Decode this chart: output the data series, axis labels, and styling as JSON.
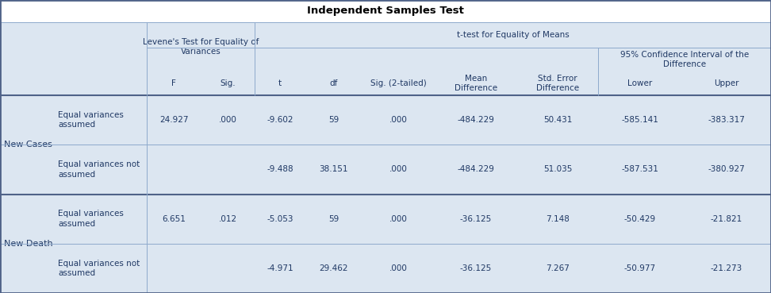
{
  "title": "Independent Samples Test",
  "header_levene": "Levene's Test for Equality of\nVariances",
  "header_ttest": "t-test for Equality of Means",
  "header_ci": "95% Confidence Interval of the\nDifference",
  "col_headers_row3": [
    "F",
    "Sig.",
    "t",
    "df",
    "Sig. (2-tailed)",
    "Mean\nDifference",
    "Std. Error\nDifference",
    "Lower",
    "Upper"
  ],
  "row_groups": [
    {
      "group_label": "New Cases",
      "rows": [
        {
          "sub_label": "Equal variances\nassumed",
          "values": [
            "24.927",
            ".000",
            "-9.602",
            "59",
            ".000",
            "-484.229",
            "50.431",
            "-585.141",
            "-383.317"
          ]
        },
        {
          "sub_label": "Equal variances not\nassumed",
          "values": [
            "",
            "",
            "-9.488",
            "38.151",
            ".000",
            "-484.229",
            "51.035",
            "-587.531",
            "-380.927"
          ]
        }
      ]
    },
    {
      "group_label": "New Death",
      "rows": [
        {
          "sub_label": "Equal variances\nassumed",
          "values": [
            "6.651",
            ".012",
            "-5.053",
            "59",
            ".000",
            "-36.125",
            "7.148",
            "-50.429",
            "-21.821"
          ]
        },
        {
          "sub_label": "Equal variances not\nassumed",
          "values": [
            "",
            "",
            "-4.971",
            "29.462",
            ".000",
            "-36.125",
            "7.267",
            "-50.977",
            "-21.273"
          ]
        }
      ]
    }
  ],
  "bg_white": "#ffffff",
  "bg_header": "#dce6f1",
  "bg_data_light": "#dce6f1",
  "border_thick": "#4f6288",
  "border_thin": "#8eaacc",
  "text_color": "#1f3864",
  "title_color": "#000000",
  "figw": 9.72,
  "figh": 3.69,
  "dpi": 100
}
